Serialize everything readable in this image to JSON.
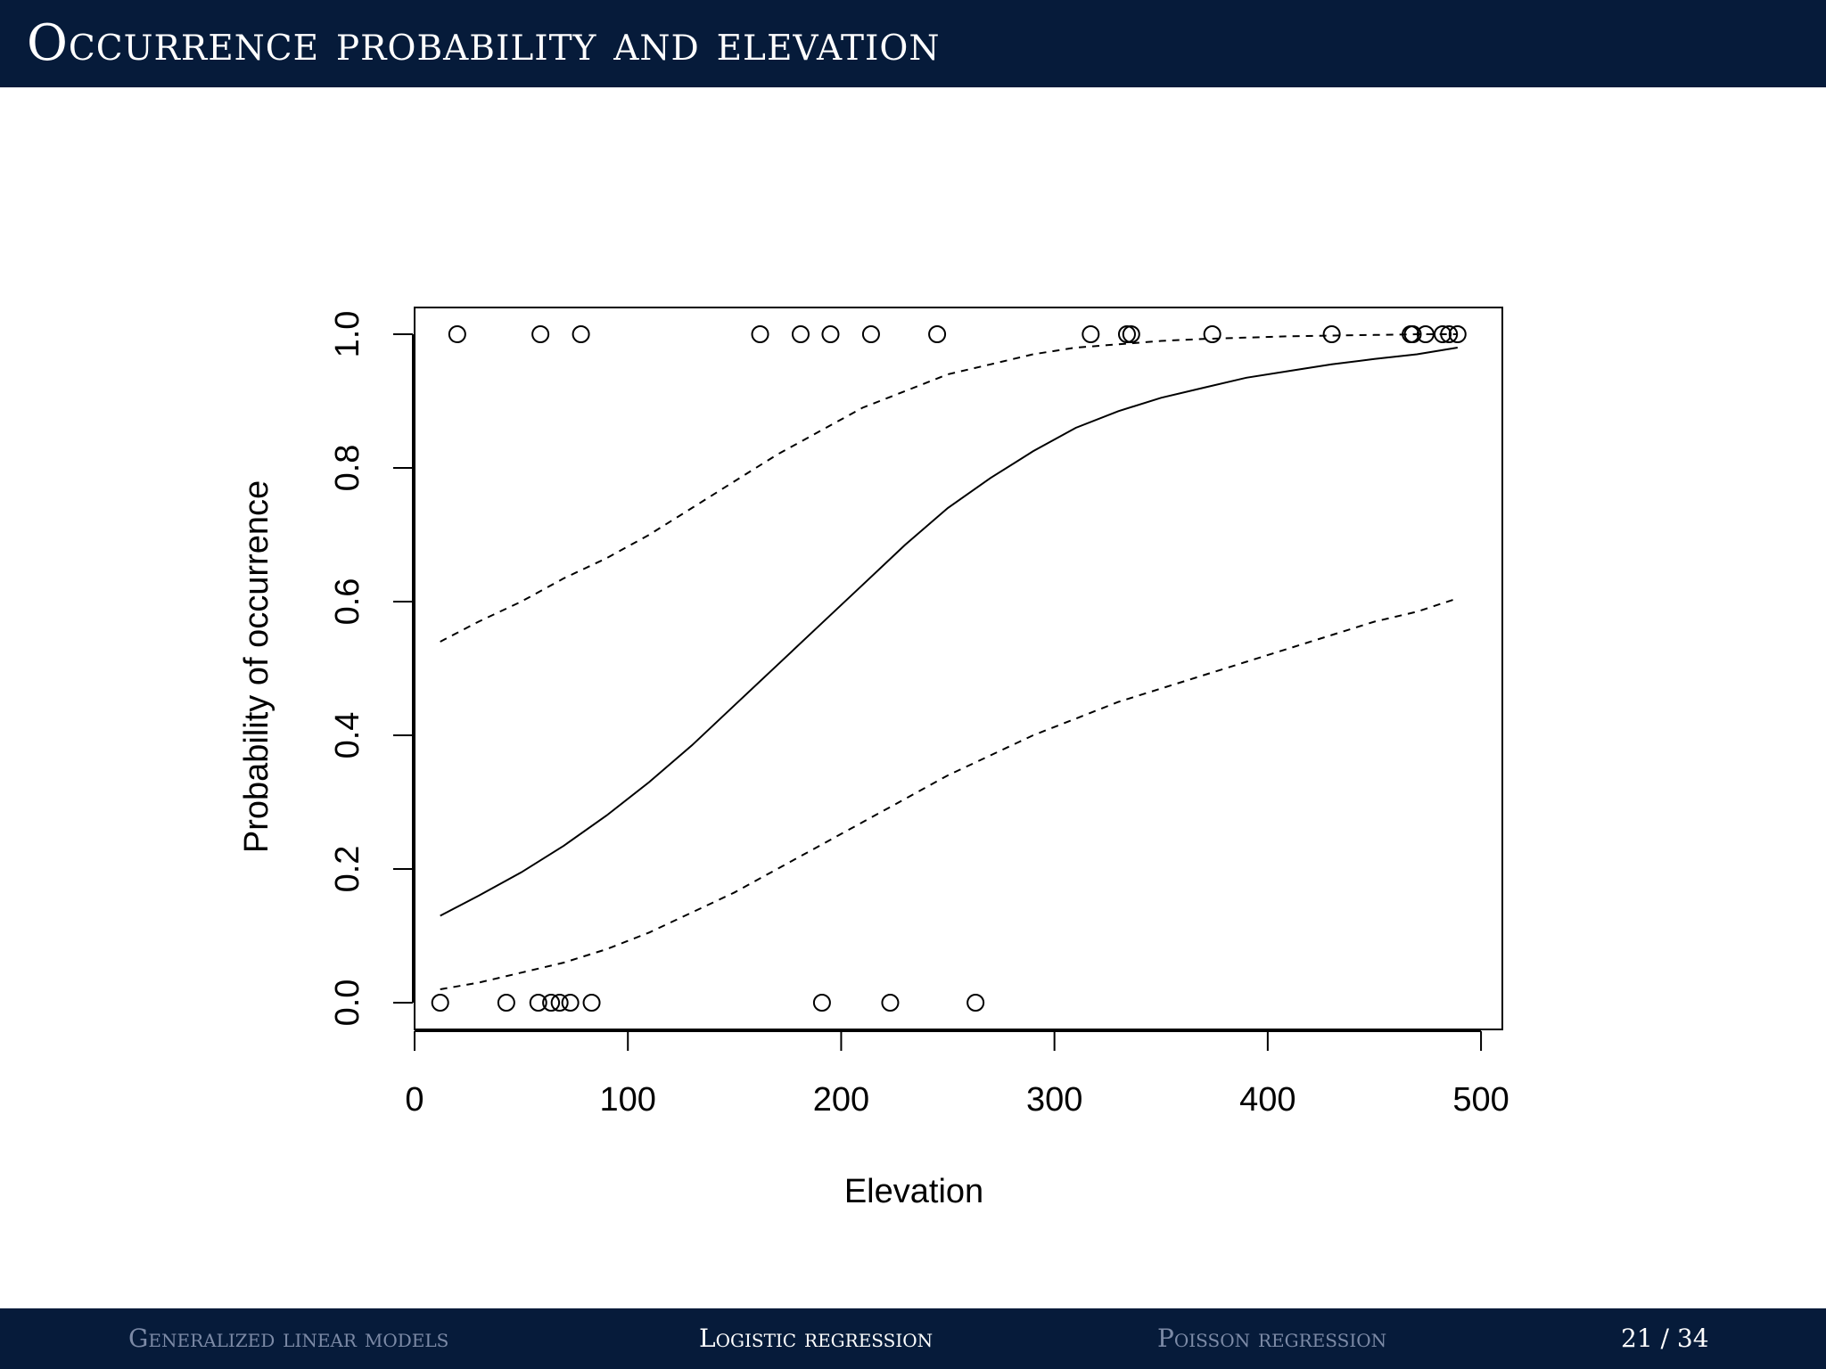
{
  "slide": {
    "title": "Occurrence probability and elevation"
  },
  "footer": {
    "sections": [
      {
        "label": "Generalized linear models",
        "active": false
      },
      {
        "label": "Logistic regression",
        "active": true
      },
      {
        "label": "Poisson regression",
        "active": false
      }
    ],
    "page_current": "21",
    "page_separator": "/",
    "page_total": "34"
  },
  "chart_data": {
    "type": "scatter",
    "title": "",
    "xlabel": "Elevation",
    "ylabel": "Probability of occurrence",
    "xlim": [
      0,
      510
    ],
    "ylim": [
      -0.04,
      1.04
    ],
    "xticks": [
      0,
      100,
      200,
      300,
      400,
      500
    ],
    "xtick_labels": [
      "0",
      "100",
      "200",
      "300",
      "400",
      "500"
    ],
    "yticks": [
      0.0,
      0.2,
      0.4,
      0.6,
      0.8,
      1.0
    ],
    "ytick_labels": [
      "0.0",
      "0.2",
      "0.4",
      "0.6",
      "0.8",
      "1.0"
    ],
    "grid": false,
    "points": {
      "x": [
        12,
        43,
        58,
        64,
        68,
        73,
        83,
        191,
        223,
        263,
        20,
        59,
        78,
        162,
        181,
        195,
        214,
        245,
        317,
        334,
        336,
        374,
        430,
        467,
        468,
        474,
        482,
        485,
        489
      ],
      "y": [
        0,
        0,
        0,
        0,
        0,
        0,
        0,
        0,
        0,
        0,
        1,
        1,
        1,
        1,
        1,
        1,
        1,
        1,
        1,
        1,
        1,
        1,
        1,
        1,
        1,
        1,
        1,
        1,
        1
      ],
      "marker": "open-circle"
    },
    "series": [
      {
        "role": "fitted",
        "style": "solid",
        "x": [
          12,
          30,
          50,
          70,
          90,
          110,
          130,
          150,
          170,
          190,
          210,
          230,
          250,
          270,
          290,
          310,
          330,
          350,
          370,
          390,
          410,
          430,
          450,
          470,
          489
        ],
        "y": [
          0.13,
          0.16,
          0.195,
          0.235,
          0.28,
          0.33,
          0.385,
          0.445,
          0.505,
          0.565,
          0.625,
          0.685,
          0.74,
          0.785,
          0.825,
          0.86,
          0.885,
          0.905,
          0.92,
          0.935,
          0.945,
          0.955,
          0.963,
          0.97,
          0.98
        ]
      },
      {
        "role": "upper-confidence",
        "style": "dashed",
        "x": [
          12,
          30,
          50,
          70,
          90,
          110,
          130,
          150,
          170,
          190,
          210,
          230,
          250,
          270,
          290,
          310,
          330,
          350,
          370,
          390,
          410,
          430,
          450,
          470,
          489
        ],
        "y": [
          0.54,
          0.57,
          0.6,
          0.635,
          0.665,
          0.7,
          0.74,
          0.78,
          0.82,
          0.855,
          0.89,
          0.915,
          0.94,
          0.955,
          0.97,
          0.98,
          0.985,
          0.99,
          0.993,
          0.995,
          0.997,
          0.998,
          0.999,
          1.0,
          1.0
        ]
      },
      {
        "role": "lower-confidence",
        "style": "dashed",
        "x": [
          12,
          30,
          50,
          70,
          90,
          110,
          130,
          150,
          170,
          190,
          210,
          230,
          250,
          270,
          290,
          310,
          330,
          350,
          370,
          390,
          410,
          430,
          450,
          470,
          489
        ],
        "y": [
          0.02,
          0.03,
          0.045,
          0.06,
          0.08,
          0.105,
          0.135,
          0.165,
          0.2,
          0.235,
          0.27,
          0.305,
          0.34,
          0.37,
          0.4,
          0.425,
          0.45,
          0.47,
          0.49,
          0.51,
          0.53,
          0.55,
          0.57,
          0.585,
          0.605
        ]
      }
    ]
  }
}
